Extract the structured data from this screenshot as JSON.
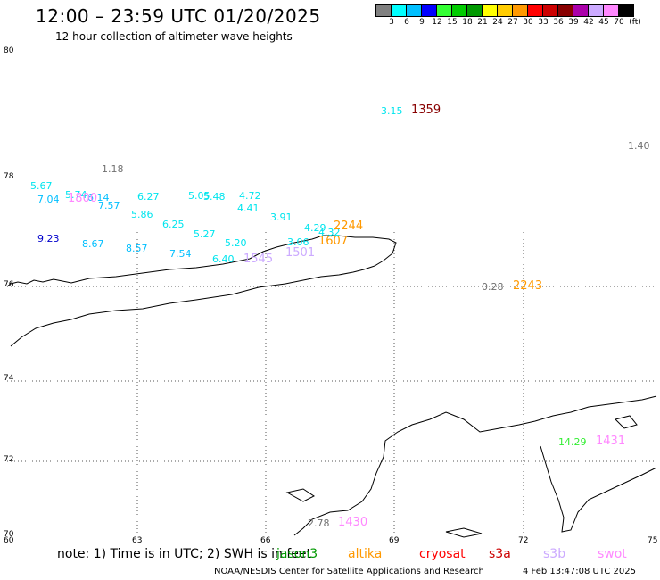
{
  "header": {
    "title": "12:00 – 23:59 UTC 01/20/2025",
    "subtitle": "12 hour collection of altimeter wave heights"
  },
  "color_scale": {
    "swatches": [
      "#808080",
      "#00ffff",
      "#00bfff",
      "#0000ff",
      "#33ff33",
      "#00cc00",
      "#009900",
      "#ffff00",
      "#ffcc00",
      "#ff9900",
      "#ff0000",
      "#cc0000",
      "#880000",
      "#aa00aa",
      "#ccaaff",
      "#ff88ff",
      "#000000"
    ],
    "labels": [
      "3",
      "6",
      "9",
      "12",
      "15",
      "18",
      "21",
      "24",
      "27",
      "30",
      "33",
      "36",
      "39",
      "42",
      "45",
      "70",
      "(ft)"
    ]
  },
  "axes": {
    "lat_labels": [
      "80",
      "78",
      "76",
      "74",
      "72",
      "70"
    ],
    "lon_labels": [
      "60",
      "63",
      "66",
      "69",
      "72",
      "75"
    ]
  },
  "observations": [
    {
      "text": "3.15",
      "color": "#00e5ee"
    },
    {
      "text": "1.40",
      "color": "#707070"
    },
    {
      "text": "1.18",
      "color": "#707070"
    },
    {
      "text": "5.67",
      "color": "#00e5ee"
    },
    {
      "text": "7.04",
      "color": "#00bfff"
    },
    {
      "text": "5.74",
      "color": "#00e5ee"
    },
    {
      "text": "6.14",
      "color": "#00bfff"
    },
    {
      "text": "7.57",
      "color": "#00bfff"
    },
    {
      "text": "6.27",
      "color": "#00e5ee"
    },
    {
      "text": "5.05",
      "color": "#00e5ee"
    },
    {
      "text": "5.48",
      "color": "#00e5ee"
    },
    {
      "text": "4.72",
      "color": "#00e5ee"
    },
    {
      "text": "4.41",
      "color": "#00e5ee"
    },
    {
      "text": "5.86",
      "color": "#00e5ee"
    },
    {
      "text": "3.91",
      "color": "#00e5ee"
    },
    {
      "text": "6.25",
      "color": "#00e5ee"
    },
    {
      "text": "4.29",
      "color": "#00e5ee"
    },
    {
      "text": "4.32",
      "color": "#00e5ee"
    },
    {
      "text": "9.23",
      "color": "#0000cc"
    },
    {
      "text": "8.67",
      "color": "#00bfff"
    },
    {
      "text": "5.27",
      "color": "#00e5ee"
    },
    {
      "text": "5.20",
      "color": "#00e5ee"
    },
    {
      "text": "3.06",
      "color": "#00e5ee"
    },
    {
      "text": "8.57",
      "color": "#00bfff"
    },
    {
      "text": "7.54",
      "color": "#00bfff"
    },
    {
      "text": "6.40",
      "color": "#00e5ee"
    },
    {
      "text": "0.28",
      "color": "#707070"
    },
    {
      "text": "14.29",
      "color": "#33ee33"
    },
    {
      "text": "2.78",
      "color": "#707070"
    }
  ],
  "passes": [
    {
      "text": "1359",
      "color": "#880000"
    },
    {
      "text": "1800",
      "color": "#ff88ff"
    },
    {
      "text": "2244",
      "color": "#ff9900"
    },
    {
      "text": "1607",
      "color": "#ff9900"
    },
    {
      "text": "1501",
      "color": "#ccaaff"
    },
    {
      "text": "1545",
      "color": "#ccaaff"
    },
    {
      "text": "2243",
      "color": "#ff9900"
    },
    {
      "text": "1431",
      "color": "#ff88ff"
    },
    {
      "text": "1430",
      "color": "#ff88ff"
    }
  ],
  "note": "note:  1) Time is in UTC;  2) SWH is in feet",
  "satellites": [
    {
      "name": "jason3",
      "color": "#009900"
    },
    {
      "name": "altika",
      "color": "#ff9900"
    },
    {
      "name": "cryosat",
      "color": "#ff0000"
    },
    {
      "name": "s3a",
      "color": "#cc0000"
    },
    {
      "name": "s3b",
      "color": "#ccaaff"
    },
    {
      "name": "swot",
      "color": "#ff88ff"
    }
  ],
  "footer": {
    "credit": "NOAA/NESDIS Center for Satellite Applications and Research",
    "timestamp": "4 Feb 13:47:08 UTC 2025"
  }
}
